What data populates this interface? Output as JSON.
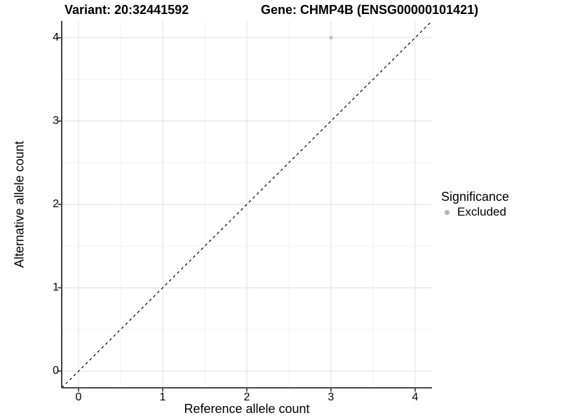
{
  "titles": {
    "variant": "Variant: 20:32441592",
    "gene": "Gene: CHMP4B (ENSG00000101421)"
  },
  "legend": {
    "title": "Significance",
    "items": [
      {
        "label": "Excluded",
        "color": "#b5b5b5"
      }
    ]
  },
  "colors": {
    "background": "#ffffff",
    "text": "#000000",
    "axis_line": "#2e2e2e",
    "grid_major": "#e4e4e4",
    "grid_minor": "#f0f0f0",
    "reference_line": "#000000",
    "point": "#bebebe"
  },
  "chart_data": {
    "type": "scatter",
    "title": "Variant: 20:32441592   Gene: CHMP4B (ENSG00000101421)",
    "xlabel": "Reference allele count",
    "ylabel": "Alternative allele count",
    "xlim": [
      -0.2,
      4.2
    ],
    "ylim": [
      -0.2,
      4.2
    ],
    "x_ticks": [
      0,
      1,
      2,
      3,
      4
    ],
    "y_ticks": [
      0,
      1,
      2,
      3,
      4
    ],
    "x_minor_ticks": [
      0.5,
      1.5,
      2.5,
      3.5
    ],
    "y_minor_ticks": [
      0.5,
      1.5,
      2.5,
      3.5
    ],
    "grid": true,
    "legend_position": "right",
    "legend_title": "Significance",
    "series": [
      {
        "name": "Excluded",
        "color": "#bebebe",
        "points": [
          {
            "x": 3,
            "y": 4
          }
        ]
      }
    ],
    "reference_line": {
      "equation": "y = x",
      "style": "dashed",
      "color": "#000000",
      "from": [
        -0.2,
        -0.2
      ],
      "to": [
        4.2,
        4.2
      ]
    }
  }
}
